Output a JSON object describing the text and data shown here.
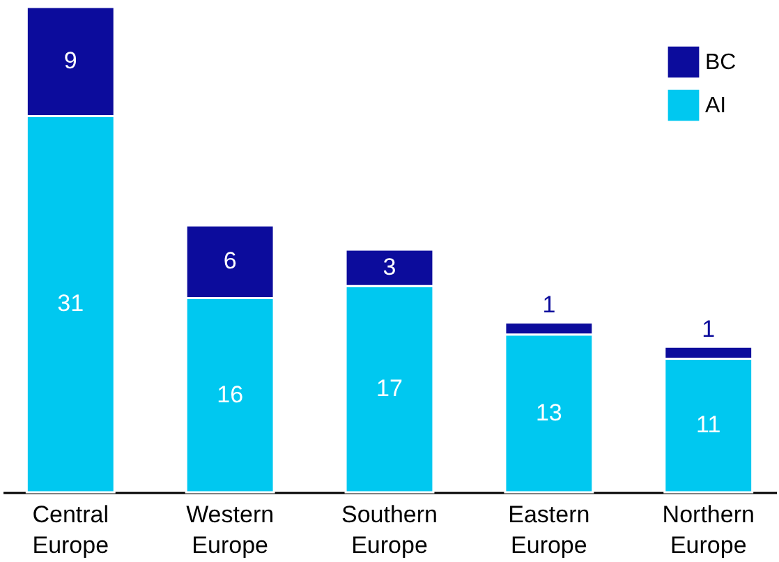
{
  "chart_data": {
    "type": "bar",
    "stacked": true,
    "data_labels": true,
    "legend": "top right",
    "grid": false,
    "categories": [
      "Central Europe",
      "Western Europe",
      "Southern Europe",
      "Eastern Europe",
      "Northern Europe"
    ],
    "series": [
      {
        "name": "AI",
        "color": "#00c8f0",
        "values": [
          31,
          16,
          17,
          13,
          11
        ]
      },
      {
        "name": "BC",
        "color": "#0c0c9c",
        "values": [
          9,
          6,
          3,
          1,
          1
        ]
      }
    ]
  }
}
